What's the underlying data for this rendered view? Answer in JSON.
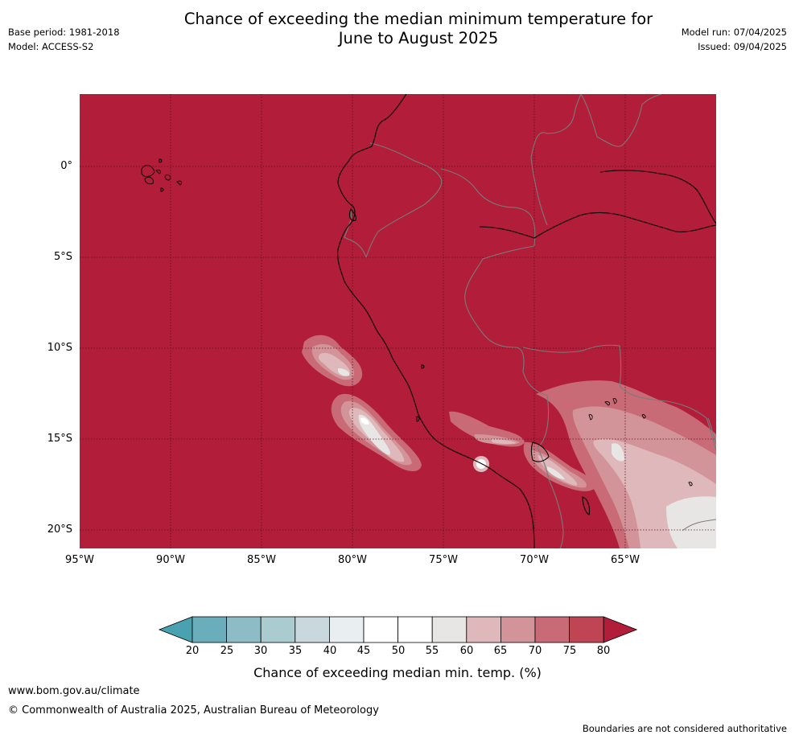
{
  "title_line1": "Chance of exceeding the median minimum temperature for",
  "title_line2": "June to August 2025",
  "base_period": "Base period: 1981-2018",
  "model": "Model: ACCESS-S2",
  "model_run": "Model run: 07/04/2025",
  "issued": "Issued: 09/04/2025",
  "lat_labels": [
    "0°",
    "5°S",
    "10°S",
    "15°S",
    "20°S"
  ],
  "lon_labels": [
    "95°W",
    "90°W",
    "85°W",
    "80°W",
    "75°W",
    "70°W",
    "65°W"
  ],
  "colorbar": {
    "labels": [
      "20",
      "25",
      "30",
      "35",
      "40",
      "45",
      "50",
      "55",
      "60",
      "65",
      "70",
      "75",
      "80"
    ],
    "colors": [
      "#4aa1b0",
      "#6aaebb",
      "#8dbcc6",
      "#aacbd0",
      "#c8d8dc",
      "#e9eef0",
      "#ffffff",
      "#ffffff",
      "#e8e6e4",
      "#deb8bb",
      "#d39499",
      "#c96b76",
      "#bf4555",
      "#b21d3a"
    ],
    "title": "Chance of exceeding median min. temp. (%)"
  },
  "footer_url": "www.bom.gov.au/climate",
  "footer_copyright": "© Commonwealth of Australia 2025, Australian Bureau of Meteorology",
  "disclaimer": "Boundaries are not considered authoritative",
  "map": {
    "background_color": "#b21d3a",
    "grid_color": "#5a1020",
    "coast_color": "#000000",
    "border_color": "#7a7a7a"
  }
}
